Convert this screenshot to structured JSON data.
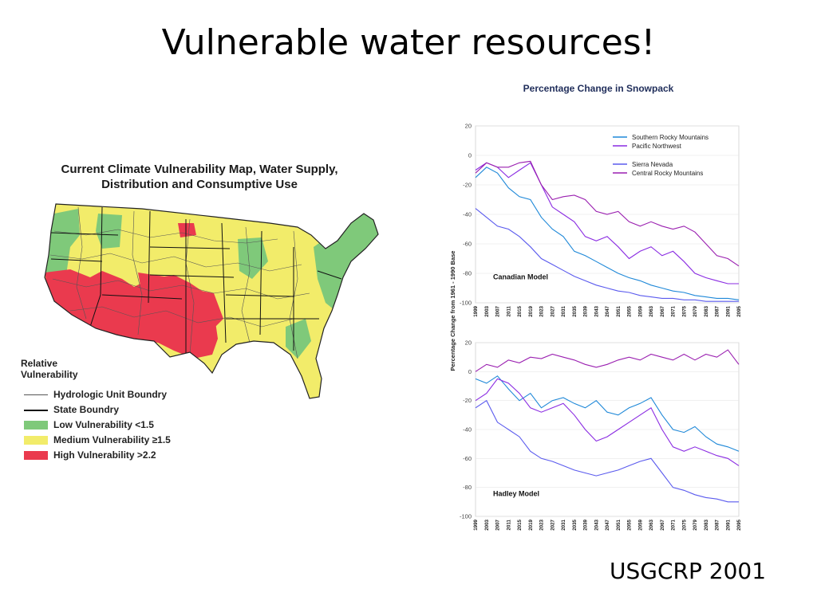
{
  "slide": {
    "title": "Vulnerable water resources!",
    "citation": "USGCRP 2001"
  },
  "map": {
    "title_line1": "Current Climate Vulnerability Map, Water Supply,",
    "title_line2": "Distribution and Consumptive Use",
    "legend_title_line1": "Relative",
    "legend_title_line2": "Vulnerability",
    "legend_items": [
      {
        "label": "Hydrologic Unit Boundry",
        "kind": "line-thin",
        "color": "#555555"
      },
      {
        "label": "State Boundry",
        "kind": "line-thick",
        "color": "#111111"
      },
      {
        "label": "Low Vulnerability <1.5",
        "kind": "swatch",
        "color": "#7fc97a"
      },
      {
        "label": "Medium Vulnerability ≥1.5",
        "kind": "swatch",
        "color": "#f2ec6a"
      },
      {
        "label": "High Vulnerability >2.2",
        "kind": "swatch",
        "color": "#ea3a4e"
      }
    ],
    "colors": {
      "low": "#7fc97a",
      "medium": "#f2ec6a",
      "high": "#ea3a4e"
    }
  },
  "charts": {
    "title": "Percentage Change in Snowpack",
    "ylabel": "Percentage Change from 1961 - 1990 Base"
  },
  "chart_data": [
    {
      "type": "line",
      "title": "Canadian Model",
      "ylim": [
        -100,
        20
      ],
      "yticks": [
        20,
        0,
        -20,
        -40,
        -60,
        -80,
        -100
      ],
      "xlim": [
        1999,
        2095
      ],
      "xticks": [
        1999,
        2003,
        2007,
        2011,
        2015,
        2019,
        2023,
        2027,
        2031,
        2035,
        2039,
        2043,
        2047,
        2051,
        2055,
        2059,
        2063,
        2067,
        2071,
        2075,
        2079,
        2083,
        2087,
        2091,
        2095
      ],
      "legend_position": "top-right",
      "series": [
        {
          "name": "Southern Rocky Mountains",
          "color": "#1e88d8",
          "x": [
            1999,
            2003,
            2007,
            2011,
            2015,
            2019,
            2023,
            2027,
            2031,
            2035,
            2039,
            2043,
            2047,
            2051,
            2055,
            2059,
            2063,
            2067,
            2071,
            2075,
            2079,
            2083,
            2087,
            2091,
            2095
          ],
          "y": [
            -15,
            -8,
            -12,
            -22,
            -28,
            -30,
            -42,
            -50,
            -55,
            -65,
            -68,
            -72,
            -76,
            -80,
            -83,
            -85,
            -88,
            -90,
            -92,
            -93,
            -95,
            -96,
            -97,
            -97,
            -98
          ]
        },
        {
          "name": "Pacific Northwest",
          "color": "#8a2be2",
          "x": [
            1999,
            2003,
            2007,
            2011,
            2015,
            2019,
            2023,
            2027,
            2031,
            2035,
            2039,
            2043,
            2047,
            2051,
            2055,
            2059,
            2063,
            2067,
            2071,
            2075,
            2079,
            2083,
            2087,
            2091,
            2095
          ],
          "y": [
            -10,
            -5,
            -8,
            -15,
            -10,
            -5,
            -20,
            -35,
            -40,
            -45,
            -55,
            -58,
            -55,
            -62,
            -70,
            -65,
            -62,
            -68,
            -65,
            -72,
            -80,
            -83,
            -85,
            -87,
            -87
          ]
        },
        {
          "name": "Sierra Nevada",
          "color": "#5a5aee",
          "x": [
            1999,
            2003,
            2007,
            2011,
            2015,
            2019,
            2023,
            2027,
            2031,
            2035,
            2039,
            2043,
            2047,
            2051,
            2055,
            2059,
            2063,
            2067,
            2071,
            2075,
            2079,
            2083,
            2087,
            2091,
            2095
          ],
          "y": [
            -36,
            -42,
            -48,
            -50,
            -55,
            -62,
            -70,
            -74,
            -78,
            -82,
            -85,
            -88,
            -90,
            -92,
            -93,
            -95,
            -96,
            -97,
            -97,
            -98,
            -98,
            -99,
            -99,
            -99,
            -99
          ]
        },
        {
          "name": "Central Rocky Mountains",
          "color": "#9a1fb0",
          "x": [
            1999,
            2003,
            2007,
            2011,
            2015,
            2019,
            2023,
            2027,
            2031,
            2035,
            2039,
            2043,
            2047,
            2051,
            2055,
            2059,
            2063,
            2067,
            2071,
            2075,
            2079,
            2083,
            2087,
            2091,
            2095
          ],
          "y": [
            -12,
            -5,
            -8,
            -8,
            -5,
            -4,
            -20,
            -30,
            -28,
            -27,
            -30,
            -38,
            -40,
            -38,
            -45,
            -48,
            -45,
            -48,
            -50,
            -48,
            -52,
            -60,
            -68,
            -70,
            -75
          ]
        }
      ]
    },
    {
      "type": "line",
      "title": "Hadley Model",
      "ylim": [
        -100,
        20
      ],
      "yticks": [
        20,
        0,
        -20,
        -40,
        -60,
        -80,
        -100
      ],
      "xlim": [
        1999,
        2095
      ],
      "xticks": [
        1999,
        2003,
        2007,
        2011,
        2015,
        2019,
        2023,
        2027,
        2031,
        2035,
        2039,
        2043,
        2047,
        2051,
        2055,
        2059,
        2063,
        2067,
        2071,
        2075,
        2079,
        2083,
        2087,
        2091,
        2095
      ],
      "series": [
        {
          "name": "Southern Rocky Mountains",
          "color": "#1e88d8",
          "x": [
            1999,
            2003,
            2007,
            2011,
            2015,
            2019,
            2023,
            2027,
            2031,
            2035,
            2039,
            2043,
            2047,
            2051,
            2055,
            2059,
            2063,
            2067,
            2071,
            2075,
            2079,
            2083,
            2087,
            2091,
            2095
          ],
          "y": [
            -5,
            -8,
            -3,
            -12,
            -20,
            -15,
            -25,
            -20,
            -18,
            -22,
            -25,
            -20,
            -28,
            -30,
            -25,
            -22,
            -18,
            -30,
            -40,
            -42,
            -38,
            -45,
            -50,
            -52,
            -55
          ]
        },
        {
          "name": "Pacific Northwest",
          "color": "#8a2be2",
          "x": [
            1999,
            2003,
            2007,
            2011,
            2015,
            2019,
            2023,
            2027,
            2031,
            2035,
            2039,
            2043,
            2047,
            2051,
            2055,
            2059,
            2063,
            2067,
            2071,
            2075,
            2079,
            2083,
            2087,
            2091,
            2095
          ],
          "y": [
            -20,
            -15,
            -5,
            -8,
            -15,
            -25,
            -28,
            -25,
            -22,
            -30,
            -40,
            -48,
            -45,
            -40,
            -35,
            -30,
            -25,
            -40,
            -52,
            -55,
            -52,
            -55,
            -58,
            -60,
            -65
          ]
        },
        {
          "name": "Sierra Nevada",
          "color": "#5a5aee",
          "x": [
            1999,
            2003,
            2007,
            2011,
            2015,
            2019,
            2023,
            2027,
            2031,
            2035,
            2039,
            2043,
            2047,
            2051,
            2055,
            2059,
            2063,
            2067,
            2071,
            2075,
            2079,
            2083,
            2087,
            2091,
            2095
          ],
          "y": [
            -25,
            -20,
            -35,
            -40,
            -45,
            -55,
            -60,
            -62,
            -65,
            -68,
            -70,
            -72,
            -70,
            -68,
            -65,
            -62,
            -60,
            -70,
            -80,
            -82,
            -85,
            -87,
            -88,
            -90,
            -90
          ]
        },
        {
          "name": "Central Rocky Mountains",
          "color": "#9a1fb0",
          "x": [
            1999,
            2003,
            2007,
            2011,
            2015,
            2019,
            2023,
            2027,
            2031,
            2035,
            2039,
            2043,
            2047,
            2051,
            2055,
            2059,
            2063,
            2067,
            2071,
            2075,
            2079,
            2083,
            2087,
            2091,
            2095
          ],
          "y": [
            0,
            5,
            3,
            8,
            6,
            10,
            9,
            12,
            10,
            8,
            5,
            3,
            5,
            8,
            10,
            8,
            12,
            10,
            8,
            12,
            8,
            12,
            10,
            15,
            5
          ]
        }
      ]
    }
  ]
}
